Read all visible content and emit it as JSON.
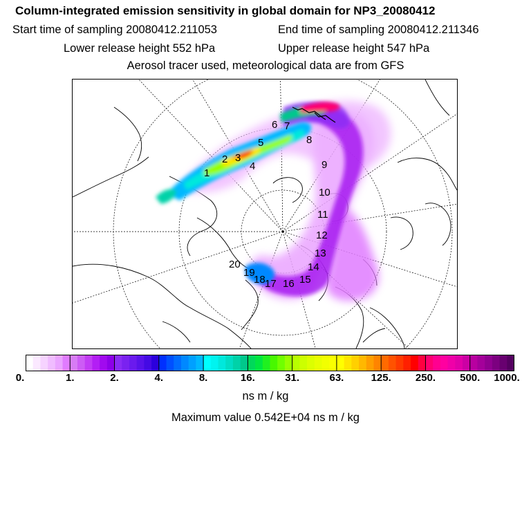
{
  "title": "Column-integrated emission sensitivity in global domain for NP3_20080412",
  "start_time_label": "Start time of sampling 20080412.211053",
  "end_time_label": "End time of sampling 20080412.211346",
  "lower_release_label": "Lower release height  552 hPa",
  "upper_release_label": "Upper release height  547 hPa",
  "tracer_note": "Aerosol tracer used, meteorological data are from GFS",
  "colorbar": {
    "tick_labels": [
      "0.",
      "1.",
      "2.",
      "4.",
      "8.",
      "16.",
      "31.",
      "63.",
      "125.",
      "250.",
      "500.",
      "1000."
    ],
    "colors": [
      "#ffffff",
      "#fbe9ff",
      "#f6d3ff",
      "#f0bcff",
      "#eaa4ff",
      "#e07cff",
      "#d77cf5",
      "#cd5cf5",
      "#c23cf5",
      "#b31ef5",
      "#a10aef",
      "#8d00e8",
      "#8a2cf5",
      "#7a22f0",
      "#6a1aee",
      "#5812ea",
      "#440ae4",
      "#2c00dd",
      "#0030ff",
      "#0050ff",
      "#006cff",
      "#0088ff",
      "#00a0ff",
      "#00b8ff",
      "#00ffff",
      "#00f4f0",
      "#00e8dc",
      "#00ddc4",
      "#00d2a8",
      "#00c88c",
      "#00d85a",
      "#00e640",
      "#20f020",
      "#48f800",
      "#70ff00",
      "#98ff00",
      "#b8ff00",
      "#ccff00",
      "#dcff00",
      "#e8ff00",
      "#f2ff00",
      "#faff00",
      "#ffff00",
      "#ffe600",
      "#ffd000",
      "#ffb800",
      "#ff9e00",
      "#ff8400",
      "#ff6a00",
      "#ff5200",
      "#ff3a00",
      "#ff2000",
      "#ff0000",
      "#ff0040",
      "#ff0070",
      "#ff0090",
      "#ff00a0",
      "#f000a8",
      "#e000a8",
      "#cc00a4",
      "#b800a0",
      "#a4009a",
      "#900090",
      "#7c0080",
      "#680070",
      "#540060"
    ]
  },
  "unit_label": "ns m / kg",
  "max_value_label": "Maximum value  0.542E+04 ns m / kg",
  "trajectory_labels": [
    "1",
    "2",
    "3",
    "4",
    "5",
    "6",
    "7",
    "8",
    "9",
    "10",
    "11",
    "12",
    "13",
    "14",
    "15",
    "16",
    "17",
    "18",
    "19",
    "20"
  ]
}
